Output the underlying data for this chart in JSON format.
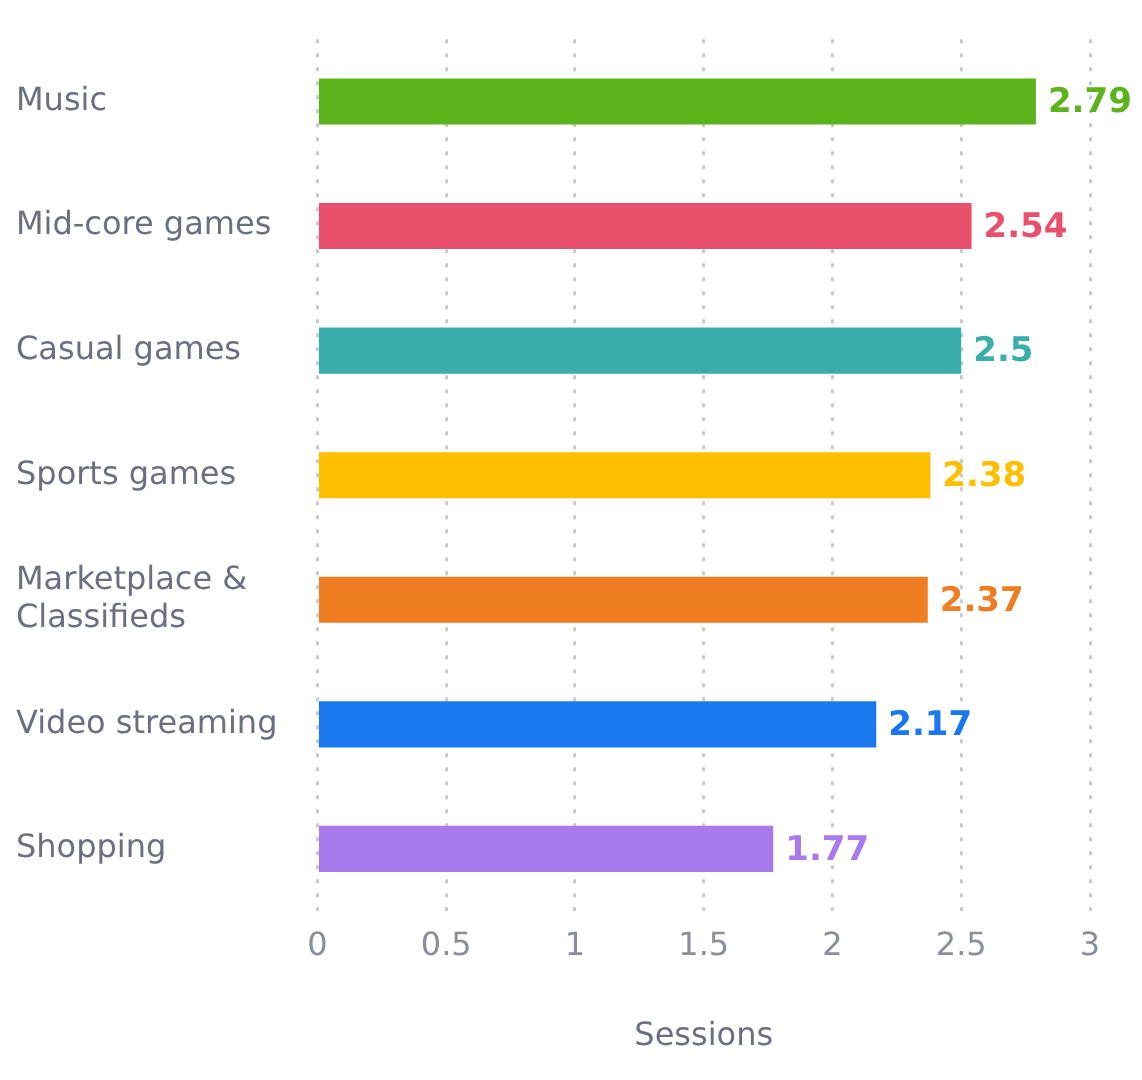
{
  "chart_data": {
    "type": "bar",
    "orientation": "horizontal",
    "xlabel": "Sessions",
    "categories": [
      "Music",
      "Mid-core games",
      "Casual games",
      "Sports games",
      "Marketplace & Classifieds",
      "Video streaming",
      "Shopping"
    ],
    "values": [
      2.79,
      2.54,
      2.5,
      2.38,
      2.37,
      2.17,
      1.77
    ],
    "colors": [
      "#5db31b",
      "#e8506b",
      "#3aafa9",
      "#ffbf00",
      "#ef7d22",
      "#1a78ef",
      "#a87aed"
    ],
    "xlim": [
      0,
      3
    ],
    "xticks": [
      0,
      0.5,
      1,
      1.5,
      2,
      2.5,
      3
    ],
    "grid": "x",
    "legend": false,
    "data_labels": true
  }
}
